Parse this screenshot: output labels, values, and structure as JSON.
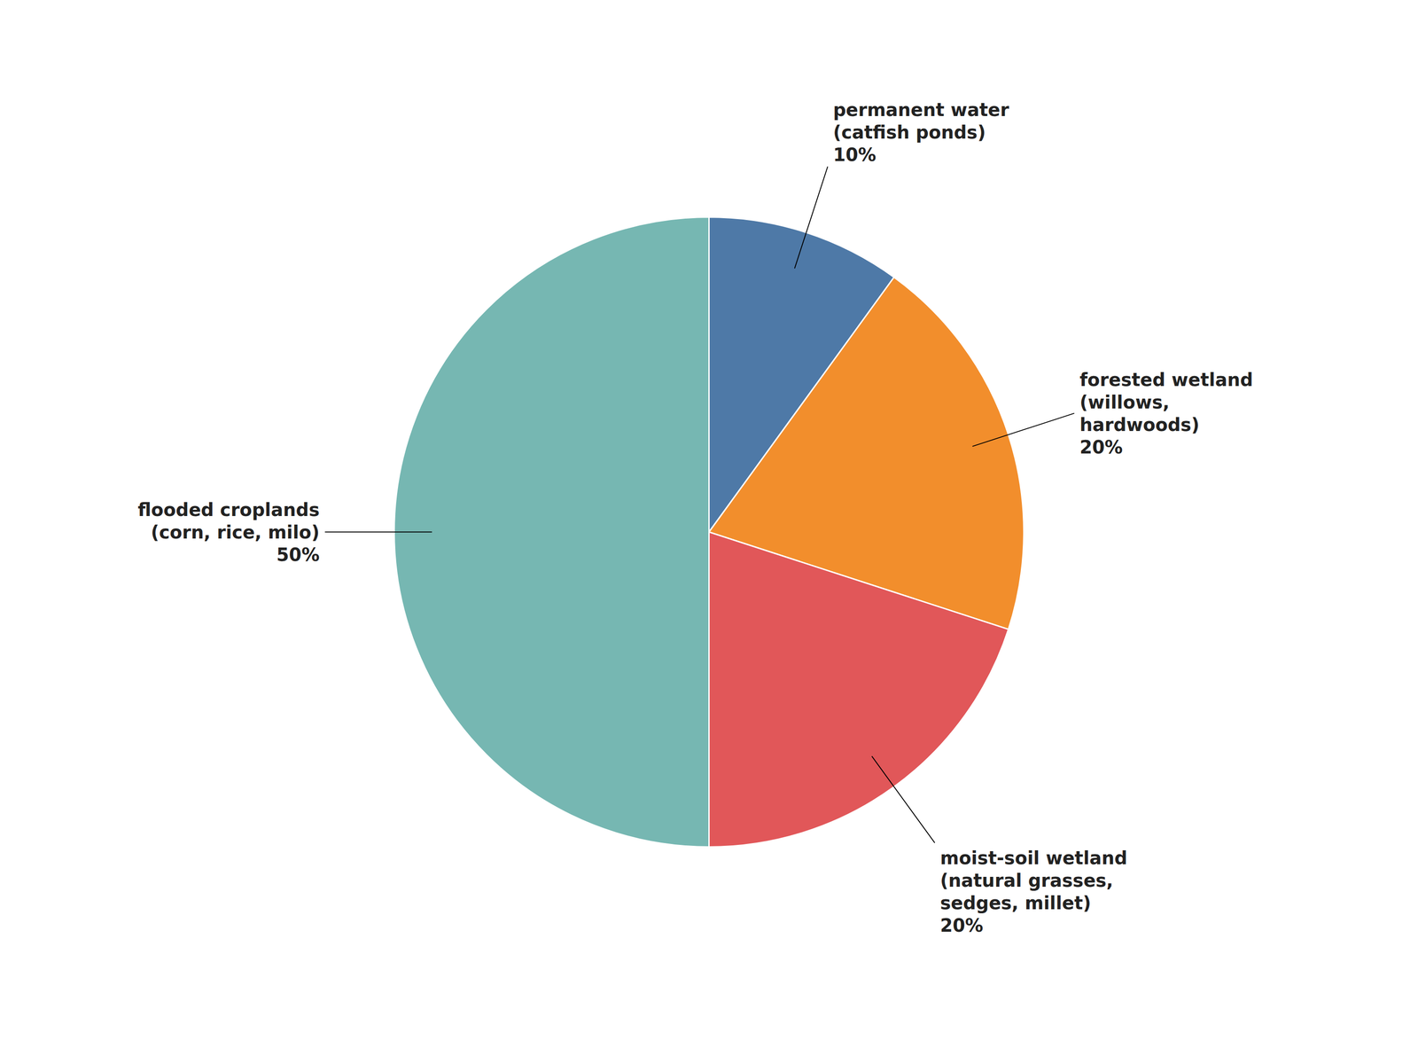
{
  "chart_data": {
    "type": "pie",
    "categories": [
      "permanent water\n(catfish ponds)\n10%",
      "forested wetland\n(willows,\nhardwoods)\n20%",
      "moist-soil wetland\n(natural grasses,\nsedges, millet)\n20%",
      "flooded croplands\n(corn, rice, milo)\n50%"
    ],
    "values": [
      10,
      20,
      20,
      50
    ]
  }
}
